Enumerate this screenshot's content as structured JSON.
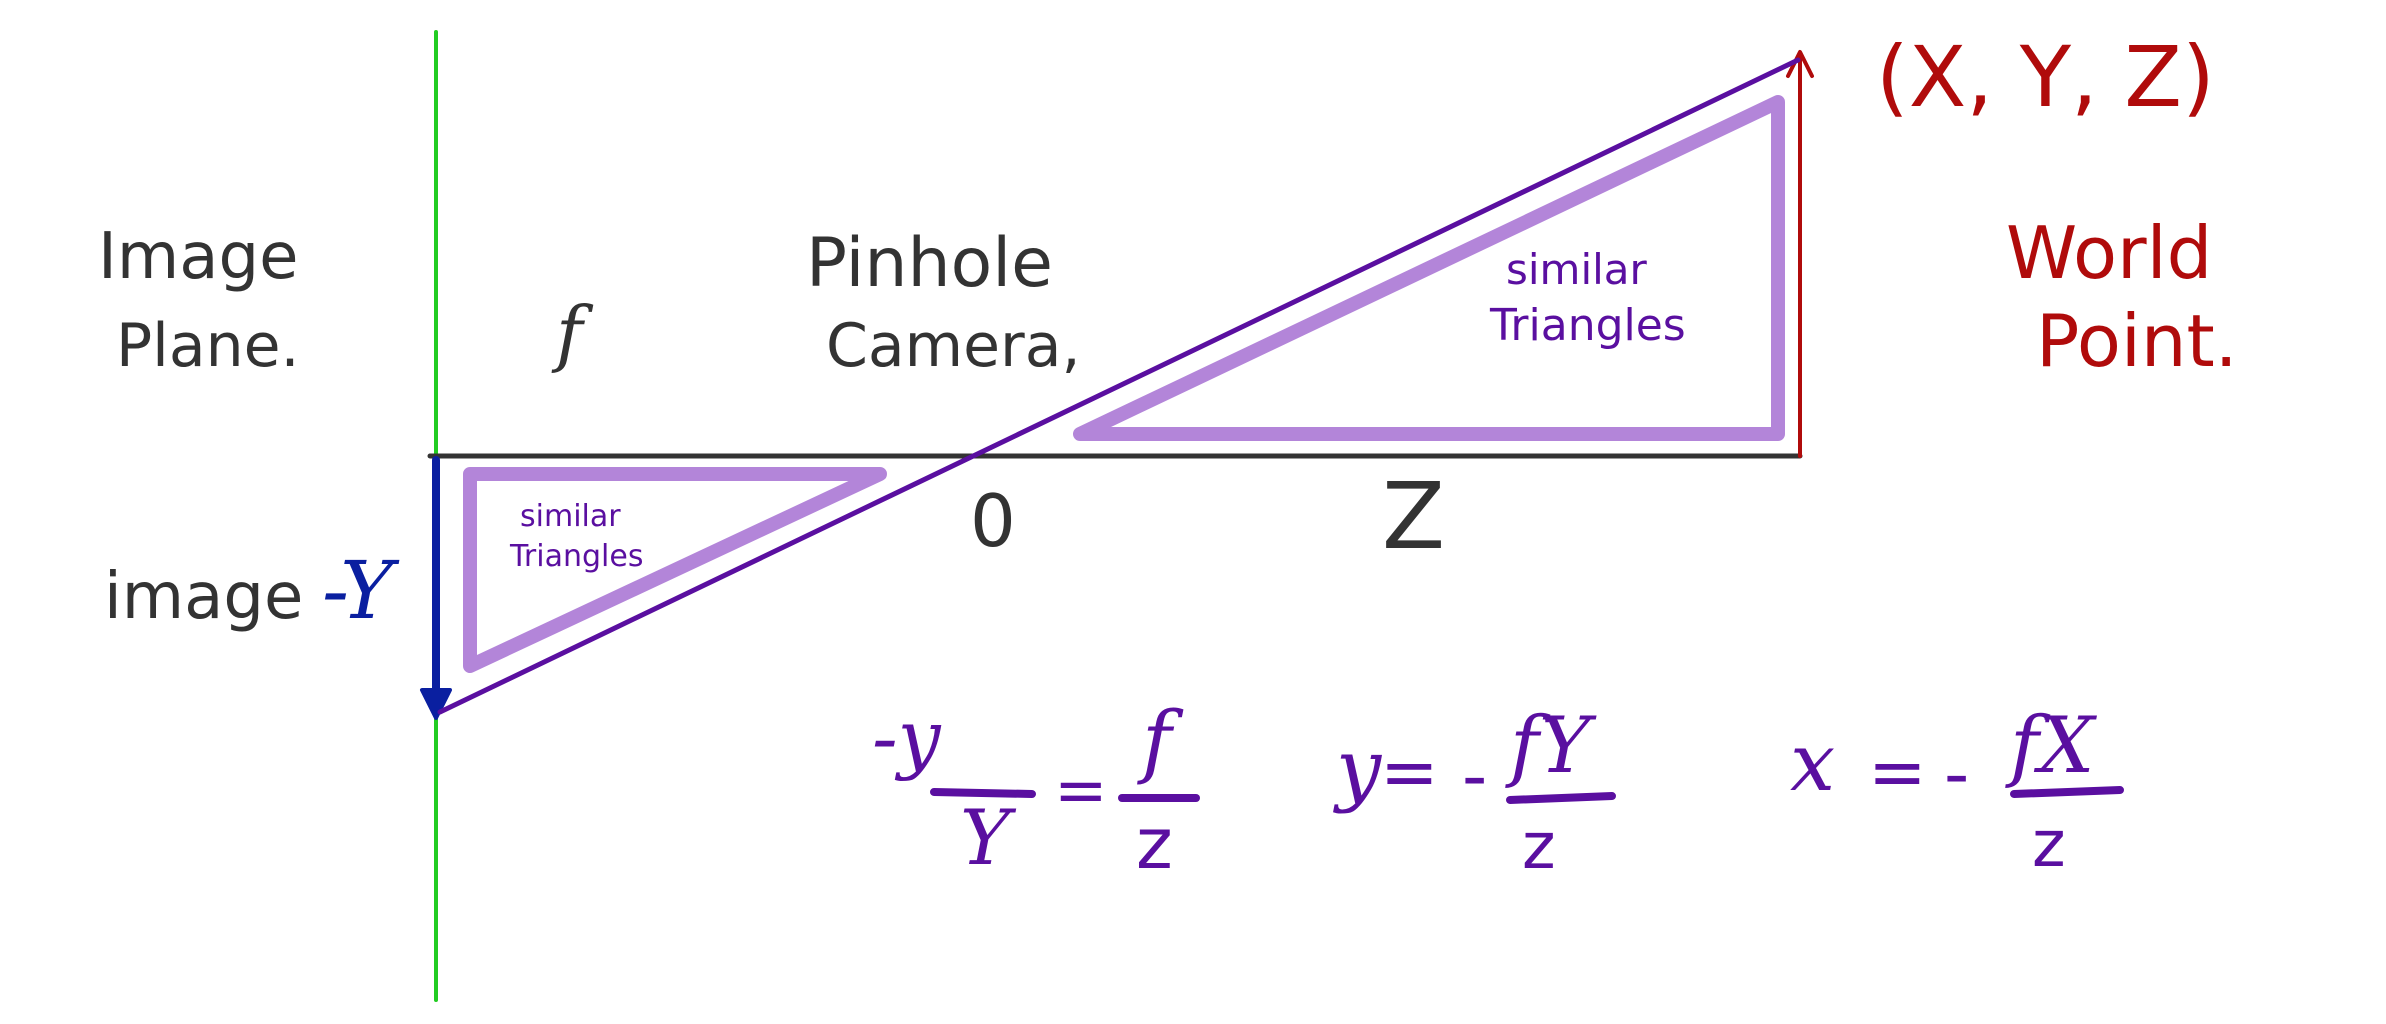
{
  "labels": {
    "image_plane_line1": "Image",
    "image_plane_line2": "Plane.",
    "f_label": "f",
    "pinhole_line1": "Pinhole",
    "pinhole_line2": "Camera,",
    "world_coord": "(X, Y, Z)",
    "world_point_line1": "World",
    "world_point_line2": "Point.",
    "origin": "0",
    "z_axis": "Z",
    "image_y_prefix": "image",
    "image_y_var": "-Y",
    "similar_big_line1": "similar",
    "similar_big_line2": "Triangles",
    "similar_small_line1": "similar",
    "similar_small_line2": "Triangles"
  },
  "equations": {
    "eq1": {
      "lhs_num": "-y",
      "lhs_den": "Y",
      "eq": "=",
      "rhs_num": "f",
      "rhs_den": "z"
    },
    "eq2": {
      "lhs": "y",
      "eq": "=",
      "minus": "-",
      "num": "fY",
      "den": "z"
    },
    "eq3": {
      "lhs": "x",
      "eq": "=",
      "minus": "-",
      "num": "fX",
      "den": "z"
    }
  },
  "colors": {
    "black_ink": "#333333",
    "green_plane": "#22cc22",
    "purple_ray": "#5a0fa0",
    "lavender_triangle": "#b385d9",
    "red_world": "#b00b0b",
    "blue_image": "#0a1fa0",
    "purple_text": "#5a0fa0"
  }
}
